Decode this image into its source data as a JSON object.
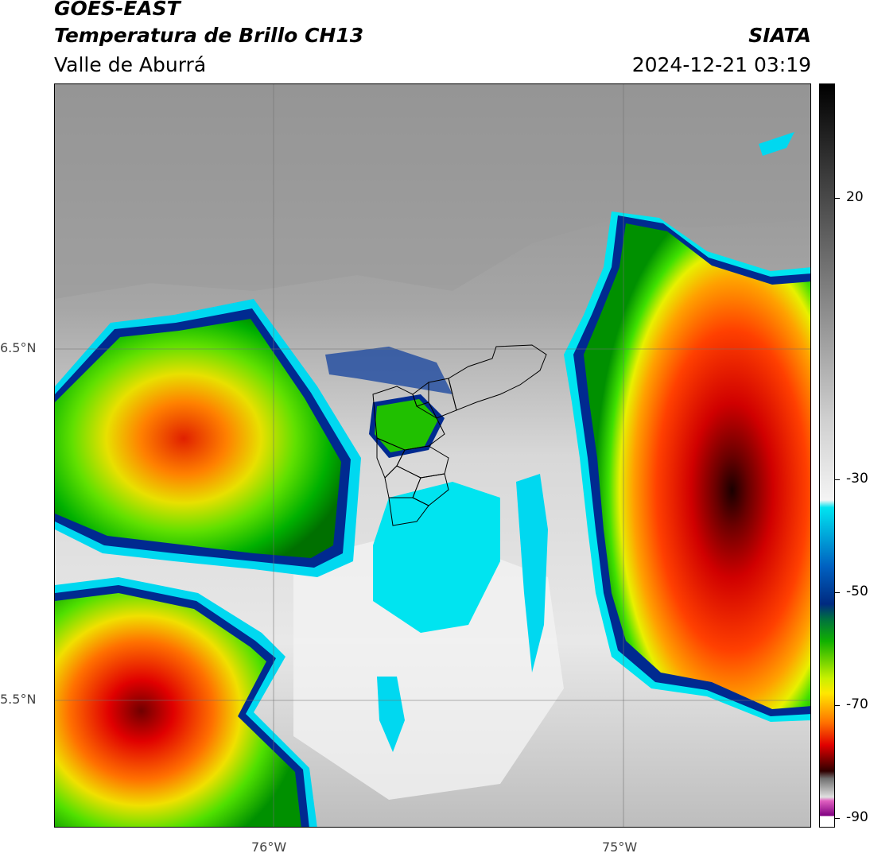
{
  "header": {
    "satellite": "GOES-EAST",
    "product": "Temperatura de Brillo CH13",
    "region": "Valle de Aburrá",
    "organization": "SIATA",
    "datetime": "2024-12-21 03:19"
  },
  "map": {
    "lat_labels": [
      "6.5°N",
      "5.5°N"
    ],
    "lon_labels": [
      "76°W",
      "75°W"
    ]
  },
  "colorbar": {
    "tick_labels": [
      "20",
      "-30",
      "-50",
      "-70",
      "-90"
    ]
  }
}
